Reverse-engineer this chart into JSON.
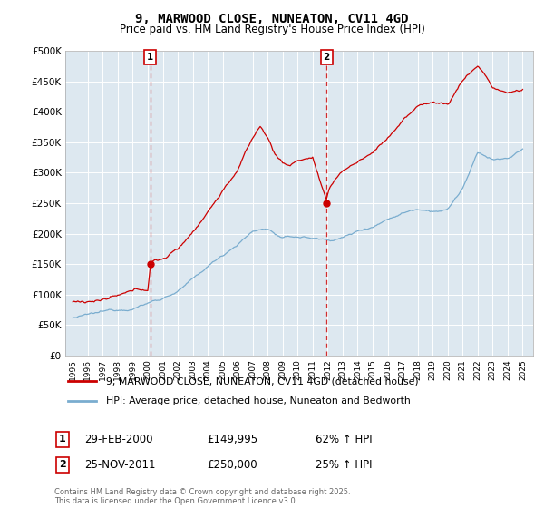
{
  "title": "9, MARWOOD CLOSE, NUNEATON, CV11 4GD",
  "subtitle": "Price paid vs. HM Land Registry's House Price Index (HPI)",
  "ylim": [
    0,
    500000
  ],
  "yticks": [
    0,
    50000,
    100000,
    150000,
    200000,
    250000,
    300000,
    350000,
    400000,
    450000,
    500000
  ],
  "ytick_labels": [
    "£0",
    "£50K",
    "£100K",
    "£150K",
    "£200K",
    "£250K",
    "£300K",
    "£350K",
    "£400K",
    "£450K",
    "£500K"
  ],
  "xlim_start": 1994.5,
  "xlim_end": 2025.7,
  "marker1_x": 2000.164,
  "marker1_y": 149995,
  "marker2_x": 2011.92,
  "marker2_y": 250000,
  "marker1_date": "29-FEB-2000",
  "marker1_price": "£149,995",
  "marker1_hpi": "62% ↑ HPI",
  "marker2_date": "25-NOV-2011",
  "marker2_price": "£250,000",
  "marker2_hpi": "25% ↑ HPI",
  "line1_color": "#cc0000",
  "line2_color": "#7aadcf",
  "vline_color": "#cc0000",
  "bg_plot_color": "#dde8f0",
  "background_color": "#ffffff",
  "grid_color": "#ffffff",
  "legend1_label": "9, MARWOOD CLOSE, NUNEATON, CV11 4GD (detached house)",
  "legend2_label": "HPI: Average price, detached house, Nuneaton and Bedworth",
  "footer": "Contains HM Land Registry data © Crown copyright and database right 2025.\nThis data is licensed under the Open Government Licence v3.0."
}
